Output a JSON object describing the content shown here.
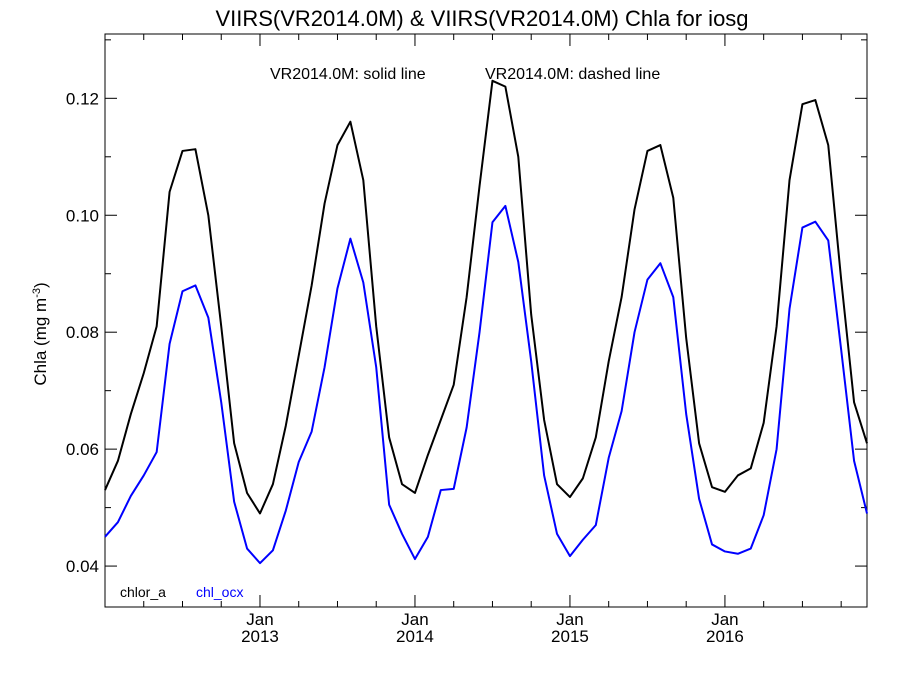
{
  "chart_data": {
    "type": "line",
    "title": "VIIRS(VR2014.0M) & VIIRS(VR2014.0M)  Chla for iosg",
    "subtitle": {
      "left": "VR2014.0M: solid line",
      "right": "VR2014.0M: dashed line"
    },
    "ylabel": {
      "main": "Chla (mg m",
      "sup": "-3",
      "close": ")"
    },
    "xlabel": "",
    "ylim": [
      0.033,
      0.131
    ],
    "xlim": [
      "2012-01",
      "2016-12"
    ],
    "x_ticks": [
      {
        "line1": "Jan",
        "line2": "2013",
        "x": "2013-01"
      },
      {
        "line1": "Jan",
        "line2": "2014",
        "x": "2014-01"
      },
      {
        "line1": "Jan",
        "line2": "2015",
        "x": "2015-01"
      },
      {
        "line1": "Jan",
        "line2": "2016",
        "x": "2016-01"
      }
    ],
    "y_ticks": [
      "0.04",
      "0.06",
      "0.08",
      "0.10",
      "0.12"
    ],
    "x": [
      "2012-01",
      "2012-02",
      "2012-03",
      "2012-04",
      "2012-05",
      "2012-06",
      "2012-07",
      "2012-08",
      "2012-09",
      "2012-10",
      "2012-11",
      "2012-12",
      "2013-01",
      "2013-02",
      "2013-03",
      "2013-04",
      "2013-05",
      "2013-06",
      "2013-07",
      "2013-08",
      "2013-09",
      "2013-10",
      "2013-11",
      "2013-12",
      "2014-01",
      "2014-02",
      "2014-03",
      "2014-04",
      "2014-05",
      "2014-06",
      "2014-07",
      "2014-08",
      "2014-09",
      "2014-10",
      "2014-11",
      "2014-12",
      "2015-01",
      "2015-02",
      "2015-03",
      "2015-04",
      "2015-05",
      "2015-06",
      "2015-07",
      "2015-08",
      "2015-09",
      "2015-10",
      "2015-11",
      "2015-12",
      "2016-01",
      "2016-02",
      "2016-03",
      "2016-04",
      "2016-05",
      "2016-06",
      "2016-07",
      "2016-08",
      "2016-09",
      "2016-10",
      "2016-11",
      "2016-12"
    ],
    "series": [
      {
        "name": "chlor_a",
        "color": "#000000",
        "values": [
          0.053,
          0.058,
          0.066,
          0.073,
          0.081,
          0.104,
          0.111,
          0.1113,
          0.1,
          0.081,
          0.061,
          0.0525,
          0.049,
          0.054,
          0.064,
          0.076,
          0.088,
          0.102,
          0.112,
          0.116,
          0.106,
          0.081,
          0.062,
          0.054,
          0.0525,
          0.059,
          0.065,
          0.071,
          0.086,
          0.105,
          0.123,
          0.122,
          0.11,
          0.083,
          0.065,
          0.054,
          0.0518,
          0.055,
          0.062,
          0.075,
          0.086,
          0.101,
          0.111,
          0.112,
          0.103,
          0.079,
          0.061,
          0.0535,
          0.0527,
          0.0555,
          0.0567,
          0.0645,
          0.081,
          0.106,
          0.119,
          0.1197,
          0.112,
          0.089,
          0.068,
          0.061
        ]
      },
      {
        "name": "chl_ocx",
        "color": "#0000ff",
        "values": [
          0.045,
          0.0475,
          0.052,
          0.0555,
          0.0595,
          0.078,
          0.087,
          0.088,
          0.0825,
          0.068,
          0.051,
          0.043,
          0.0405,
          0.0427,
          0.0495,
          0.0578,
          0.063,
          0.074,
          0.0875,
          0.096,
          0.0885,
          0.074,
          0.0505,
          0.0455,
          0.0412,
          0.045,
          0.053,
          0.0532,
          0.0637,
          0.08,
          0.0988,
          0.1016,
          0.092,
          0.075,
          0.0555,
          0.0455,
          0.0417,
          0.0445,
          0.047,
          0.0585,
          0.0665,
          0.08,
          0.089,
          0.0918,
          0.086,
          0.066,
          0.0515,
          0.0437,
          0.0425,
          0.0421,
          0.043,
          0.0487,
          0.06,
          0.084,
          0.0979,
          0.0989,
          0.0957,
          0.077,
          0.058,
          0.049
        ]
      }
    ]
  }
}
